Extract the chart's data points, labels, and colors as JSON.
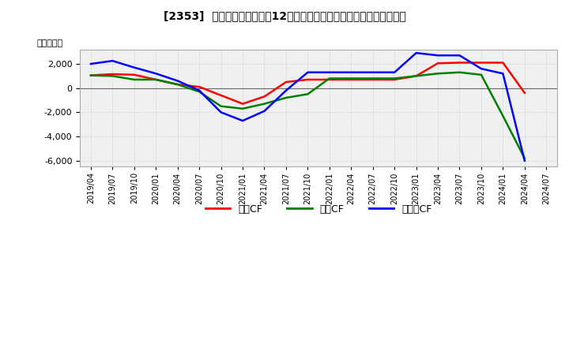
{
  "title": "[2353]  キャッシュフローの12か月移動合計の対前年同期増減額の推移",
  "ylabel": "（百万円）",
  "ylim": [
    -6500,
    3200
  ],
  "yticks": [
    -6000,
    -4000,
    -2000,
    0,
    2000
  ],
  "legend_labels": [
    "営業CF",
    "投資CF",
    "フリーCF"
  ],
  "legend_colors": [
    "#ff0000",
    "#008000",
    "#0000ff"
  ],
  "dates": [
    "2019/04",
    "2019/07",
    "2019/10",
    "2020/01",
    "2020/04",
    "2020/07",
    "2020/10",
    "2021/01",
    "2021/04",
    "2021/07",
    "2021/10",
    "2022/01",
    "2022/04",
    "2022/07",
    "2022/10",
    "2023/01",
    "2023/04",
    "2023/07",
    "2023/10",
    "2024/01",
    "2024/04",
    "2024/07"
  ],
  "operating_cf": [
    1050,
    1150,
    1100,
    700,
    300,
    100,
    -600,
    -1300,
    -700,
    500,
    700,
    700,
    700,
    700,
    700,
    1000,
    2050,
    2100,
    2100,
    2100,
    -400,
    null
  ],
  "investing_cf": [
    1050,
    1000,
    700,
    700,
    300,
    -300,
    -1500,
    -1700,
    -1300,
    -800,
    -500,
    800,
    800,
    800,
    800,
    1000,
    1200,
    1300,
    1100,
    -2300,
    -5800,
    null
  ],
  "free_cf": [
    2000,
    2250,
    1700,
    1200,
    600,
    -200,
    -2000,
    -2700,
    -1900,
    -200,
    1300,
    1300,
    1300,
    1300,
    1300,
    2900,
    2700,
    2700,
    1600,
    1200,
    -6000,
    null
  ],
  "background_color": "#ffffff",
  "grid_color": "#bbbbbb",
  "plot_bg_color": "#f0f0f0"
}
